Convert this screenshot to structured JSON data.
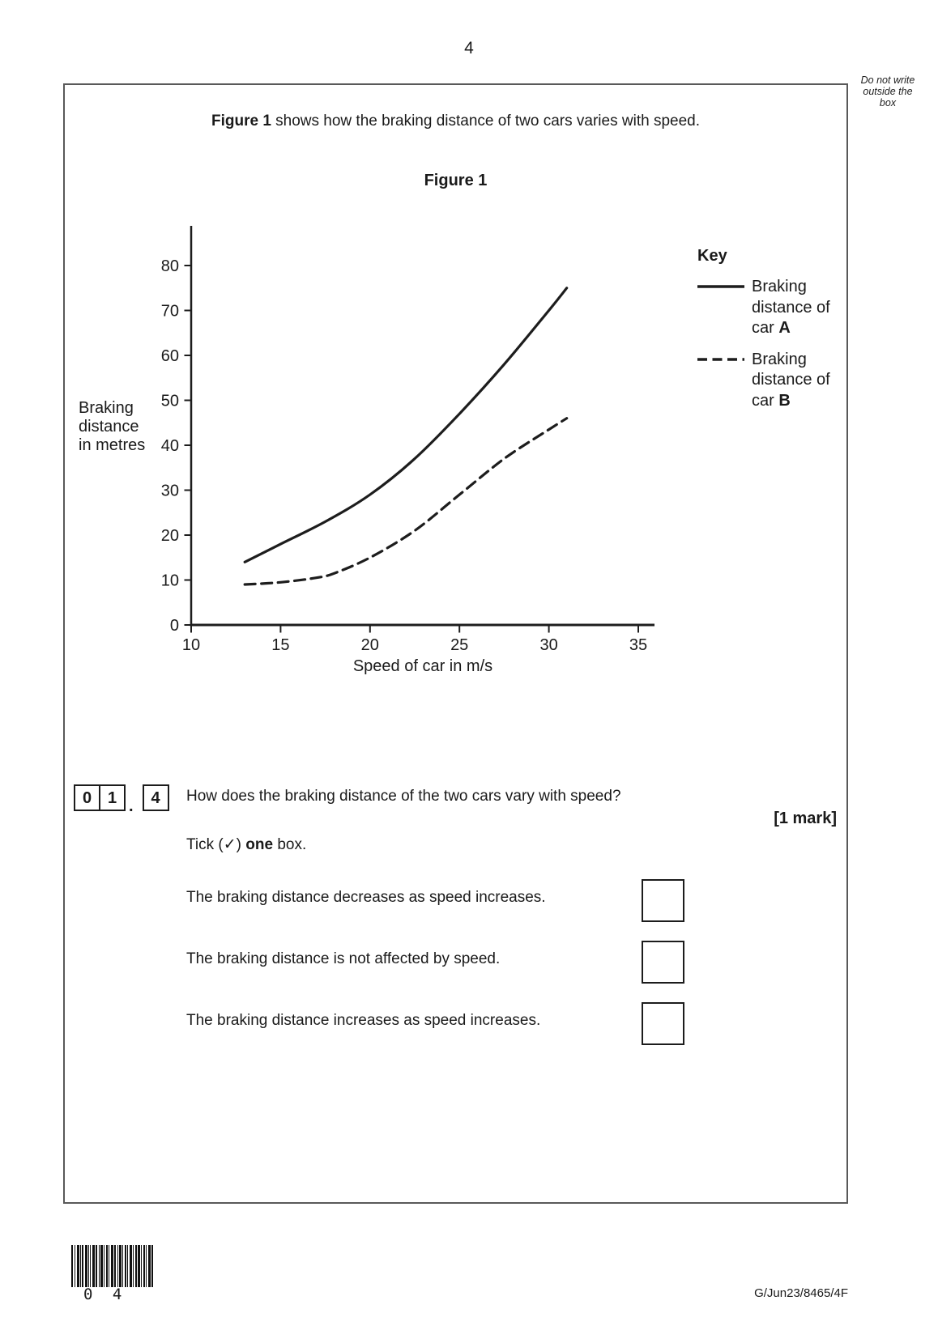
{
  "page": {
    "number": "4",
    "margin_note": "Do not write outside the box",
    "footer_code": "G/Jun23/8465/4F",
    "barcode_digits": "0 4"
  },
  "intro": {
    "bold": "Figure 1",
    "rest": " shows how the braking distance of two cars varies with speed."
  },
  "chart_data": {
    "type": "line",
    "title": "Figure 1",
    "xlabel": "Speed of car in m/s",
    "ylabel": "Braking distance in metres",
    "ylabel_lines": [
      "Braking",
      "distance",
      "in metres"
    ],
    "xlim": [
      10,
      37
    ],
    "ylim": [
      0,
      88
    ],
    "xticks": [
      10,
      15,
      20,
      25,
      30,
      35
    ],
    "yticks": [
      0,
      10,
      20,
      30,
      40,
      50,
      60,
      70,
      80
    ],
    "grid": false,
    "legend_position": "right",
    "series": [
      {
        "name": "Braking distance of car A",
        "style": "solid",
        "x": [
          13,
          15,
          17.5,
          20,
          22.5,
          25,
          27.5,
          30,
          31
        ],
        "y": [
          14,
          18,
          23,
          29,
          37,
          47,
          58,
          70,
          75
        ]
      },
      {
        "name": "Braking distance of car B",
        "style": "dashed",
        "x": [
          13,
          15,
          17,
          18,
          20,
          22.5,
          25,
          27.5,
          30,
          31
        ],
        "y": [
          9,
          9.5,
          10.5,
          11.5,
          15,
          21,
          29,
          37,
          43.5,
          46
        ]
      }
    ]
  },
  "key": {
    "title": "Key",
    "items": [
      {
        "style": "solid",
        "line1": "Braking",
        "line2": "distance of",
        "line3_prefix": "car ",
        "line3_letter": "A"
      },
      {
        "style": "dashed",
        "line1": "Braking",
        "line2": "distance of",
        "line3_prefix": "car ",
        "line3_letter": "B"
      }
    ]
  },
  "question": {
    "number_digits": [
      "0",
      "1"
    ],
    "number_separator": ".",
    "sub_digit": "4",
    "text": "How does the braking distance of the two cars vary with speed?",
    "marks": "[1 mark]",
    "tick_pre": "Tick (",
    "tick_glyph": "✓",
    "tick_mid": ") ",
    "tick_bold": "one",
    "tick_post": " box.",
    "options": [
      {
        "label": "The braking distance decreases as speed increases."
      },
      {
        "label": "The braking distance is not affected by speed."
      },
      {
        "label": "The braking distance increases as speed increases."
      }
    ]
  }
}
